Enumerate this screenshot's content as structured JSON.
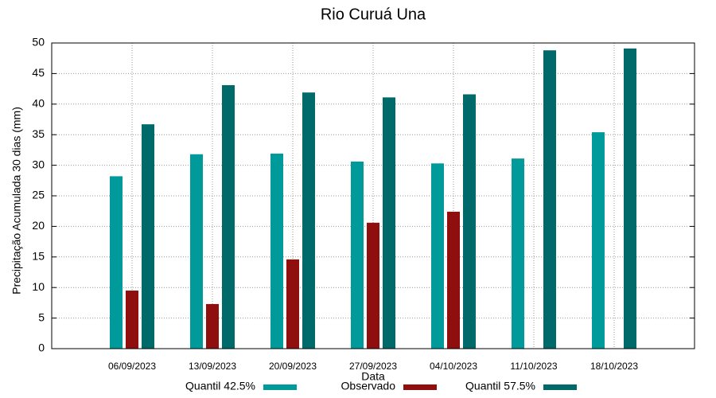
{
  "chart_data": {
    "type": "bar",
    "title": "Rio Curuá Una",
    "x_label": "Data",
    "y_label": "Precipitação Acumulada 30 dias (mm)",
    "categories": [
      "06/09/2023",
      "13/09/2023",
      "20/09/2023",
      "27/09/2023",
      "04/10/2023",
      "11/10/2023",
      "18/10/2023"
    ],
    "series": [
      {
        "name": "Quantil 42.5%",
        "color": "#009a9a",
        "values": [
          28.2,
          31.8,
          31.9,
          30.6,
          30.3,
          31.1,
          35.4
        ]
      },
      {
        "name": "Observado",
        "color": "#8f0f0f",
        "values": [
          9.5,
          7.3,
          14.6,
          20.6,
          22.4,
          null,
          null
        ]
      },
      {
        "name": "Quantil 57.5%",
        "color": "#006a6a",
        "values": [
          36.7,
          43.1,
          41.9,
          41.1,
          41.6,
          48.8,
          49.1
        ]
      }
    ],
    "ylim": [
      0,
      50
    ],
    "yticks": [
      0,
      5,
      10,
      15,
      20,
      25,
      30,
      35,
      40,
      45,
      50
    ],
    "grid": true,
    "legend": "bottom"
  }
}
